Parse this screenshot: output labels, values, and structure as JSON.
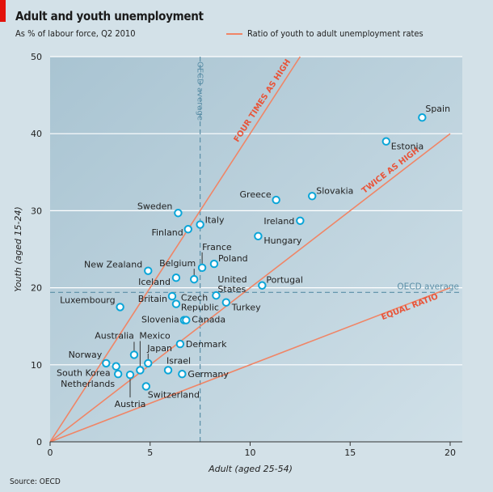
{
  "header": {
    "title": "Adult and youth unemployment",
    "subtitle": "As % of labour force, Q2 2010",
    "legend_label": "Ratio of youth to adult unemployment rates"
  },
  "footer": {
    "source": "Source: OECD"
  },
  "colors": {
    "ratio_line": "#f08566",
    "ratio_text": "#e8553a",
    "point": "#0aa5d8",
    "oecd_line": "#5a8ea6",
    "accent": "#e3120b"
  },
  "chart_data": {
    "type": "scatter",
    "title": "Adult and youth unemployment",
    "subtitle": "As % of labour force, Q2 2010",
    "xlabel": "Adult (aged 25-54)",
    "ylabel": "Youth (aged 15-24)",
    "xlim": [
      0,
      20
    ],
    "ylim": [
      0,
      50
    ],
    "xticks": [
      "0",
      "5",
      "10",
      "15",
      "20"
    ],
    "yticks": [
      "0",
      "10",
      "20",
      "30",
      "40",
      "50"
    ],
    "grid": "horizontal",
    "oecd_average": {
      "x": 7.5,
      "y": 19.4,
      "label": "OECD average"
    },
    "ratio_lines": [
      {
        "ratio": 1,
        "label": "EQUAL RATIO"
      },
      {
        "ratio": 2,
        "label": "TWICE AS HIGH"
      },
      {
        "ratio": 4,
        "label": "FOUR TIMES AS HIGH"
      }
    ],
    "points": [
      {
        "name": "Spain",
        "x": 18.6,
        "y": 42.1
      },
      {
        "name": "Estonia",
        "x": 16.8,
        "y": 39.0
      },
      {
        "name": "Slovakia",
        "x": 13.1,
        "y": 31.9
      },
      {
        "name": "Greece",
        "x": 11.3,
        "y": 31.4
      },
      {
        "name": "Ireland",
        "x": 12.5,
        "y": 28.7
      },
      {
        "name": "Hungary",
        "x": 10.4,
        "y": 26.7
      },
      {
        "name": "Portugal",
        "x": 10.6,
        "y": 20.3
      },
      {
        "name": "Sweden",
        "x": 6.4,
        "y": 29.7
      },
      {
        "name": "Italy",
        "x": 7.5,
        "y": 28.2
      },
      {
        "name": "Finland",
        "x": 6.9,
        "y": 27.6
      },
      {
        "name": "France",
        "x": 7.6,
        "y": 22.6
      },
      {
        "name": "Poland",
        "x": 8.2,
        "y": 23.1
      },
      {
        "name": "Belgium",
        "x": 7.2,
        "y": 21.1
      },
      {
        "name": "New Zealand",
        "x": 4.9,
        "y": 22.2
      },
      {
        "name": "Iceland",
        "x": 6.3,
        "y": 21.3
      },
      {
        "name": "United States",
        "x": 8.3,
        "y": 19.0
      },
      {
        "name": "Turkey",
        "x": 8.8,
        "y": 18.1
      },
      {
        "name": "Britain",
        "x": 6.1,
        "y": 18.9
      },
      {
        "name": "Czech Republic",
        "x": 6.3,
        "y": 17.9
      },
      {
        "name": "Luxembourg",
        "x": 3.5,
        "y": 17.5
      },
      {
        "name": "Slovenia",
        "x": 6.7,
        "y": 15.8
      },
      {
        "name": "Canada",
        "x": 6.8,
        "y": 15.8
      },
      {
        "name": "Denmark",
        "x": 6.5,
        "y": 12.7
      },
      {
        "name": "Australia",
        "x": 4.2,
        "y": 11.3
      },
      {
        "name": "Mexico",
        "x": 4.5,
        "y": 9.3
      },
      {
        "name": "Japan",
        "x": 4.9,
        "y": 10.2
      },
      {
        "name": "Norway",
        "x": 2.8,
        "y": 10.2
      },
      {
        "name": "South Korea",
        "x": 3.3,
        "y": 9.8
      },
      {
        "name": "Netherlands",
        "x": 3.4,
        "y": 8.8
      },
      {
        "name": "Austria",
        "x": 4.0,
        "y": 8.7
      },
      {
        "name": "Israel",
        "x": 5.9,
        "y": 9.3
      },
      {
        "name": "Germany",
        "x": 6.6,
        "y": 8.8
      },
      {
        "name": "Switzerland",
        "x": 4.8,
        "y": 7.2
      }
    ]
  }
}
